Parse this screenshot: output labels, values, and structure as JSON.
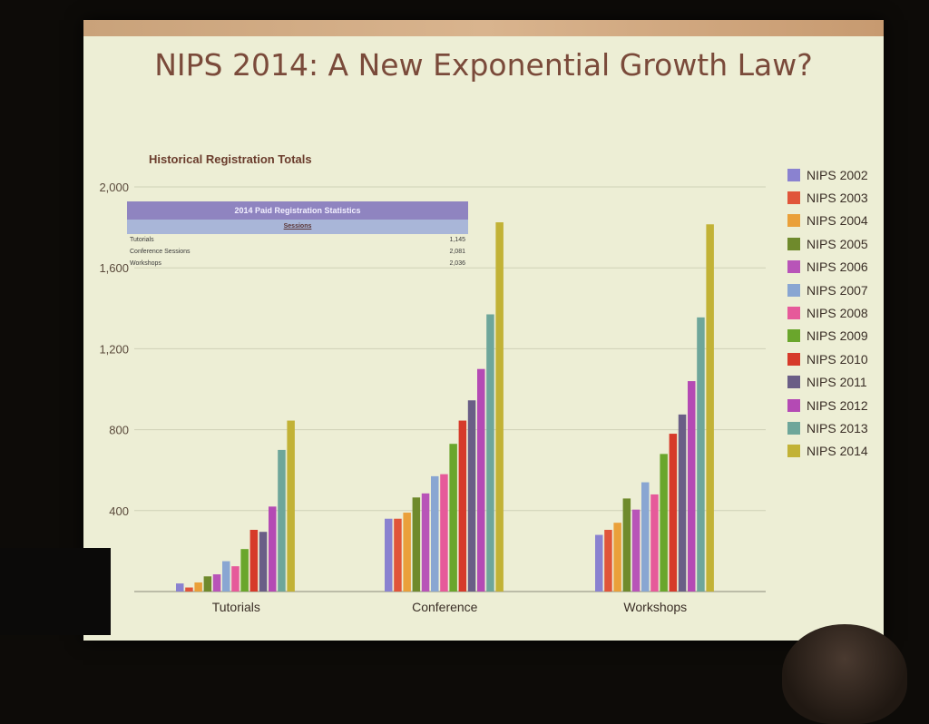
{
  "slide": {
    "title": "NIPS 2014: A New Exponential Growth Law?"
  },
  "chart_data": {
    "type": "bar",
    "title": "Historical Registration Totals",
    "xlabel": "",
    "ylabel": "",
    "ylim": [
      0,
      2000
    ],
    "yticks": [
      400,
      800,
      1200,
      1600,
      2000
    ],
    "ytick_labels": [
      "400",
      "800",
      "1,200",
      "1,600",
      "2,000"
    ],
    "grid": true,
    "legend_position": "right",
    "categories": [
      "Tutorials",
      "Conference",
      "Workshops"
    ],
    "series": [
      {
        "name": "NIPS 2002",
        "values": [
          40,
          360,
          280
        ],
        "color": "#8a82d0"
      },
      {
        "name": "NIPS 2003",
        "values": [
          20,
          360,
          305
        ],
        "color": "#e0553a"
      },
      {
        "name": "NIPS 2004",
        "values": [
          45,
          390,
          340
        ],
        "color": "#eaa03a"
      },
      {
        "name": "NIPS 2005",
        "values": [
          75,
          465,
          460
        ],
        "color": "#6f8a2c"
      },
      {
        "name": "NIPS 2006",
        "values": [
          85,
          485,
          405
        ],
        "color": "#b854b8"
      },
      {
        "name": "NIPS 2007",
        "values": [
          150,
          570,
          540
        ],
        "color": "#89a6d2"
      },
      {
        "name": "NIPS 2008",
        "values": [
          125,
          580,
          480
        ],
        "color": "#e65a9a"
      },
      {
        "name": "NIPS 2009",
        "values": [
          210,
          730,
          680
        ],
        "color": "#6aa62c"
      },
      {
        "name": "NIPS 2010",
        "values": [
          305,
          845,
          780
        ],
        "color": "#d63a2a"
      },
      {
        "name": "NIPS 2011",
        "values": [
          295,
          945,
          875
        ],
        "color": "#6a5e86"
      },
      {
        "name": "NIPS 2012",
        "values": [
          420,
          1100,
          1040
        ],
        "color": "#b44ab4"
      },
      {
        "name": "NIPS 2013",
        "values": [
          700,
          1370,
          1355
        ],
        "color": "#6ea69a"
      },
      {
        "name": "NIPS 2014",
        "values": [
          845,
          1825,
          1815
        ],
        "color": "#c2b236"
      }
    ]
  },
  "stats_table": {
    "title": "2014 Paid Registration Statistics",
    "subtitle": "Sessions",
    "rows": [
      {
        "label": "Tutorials",
        "value": "1,145"
      },
      {
        "label": "Conference Sessions",
        "value": "2,081"
      },
      {
        "label": "Workshops",
        "value": "2,036"
      }
    ]
  }
}
